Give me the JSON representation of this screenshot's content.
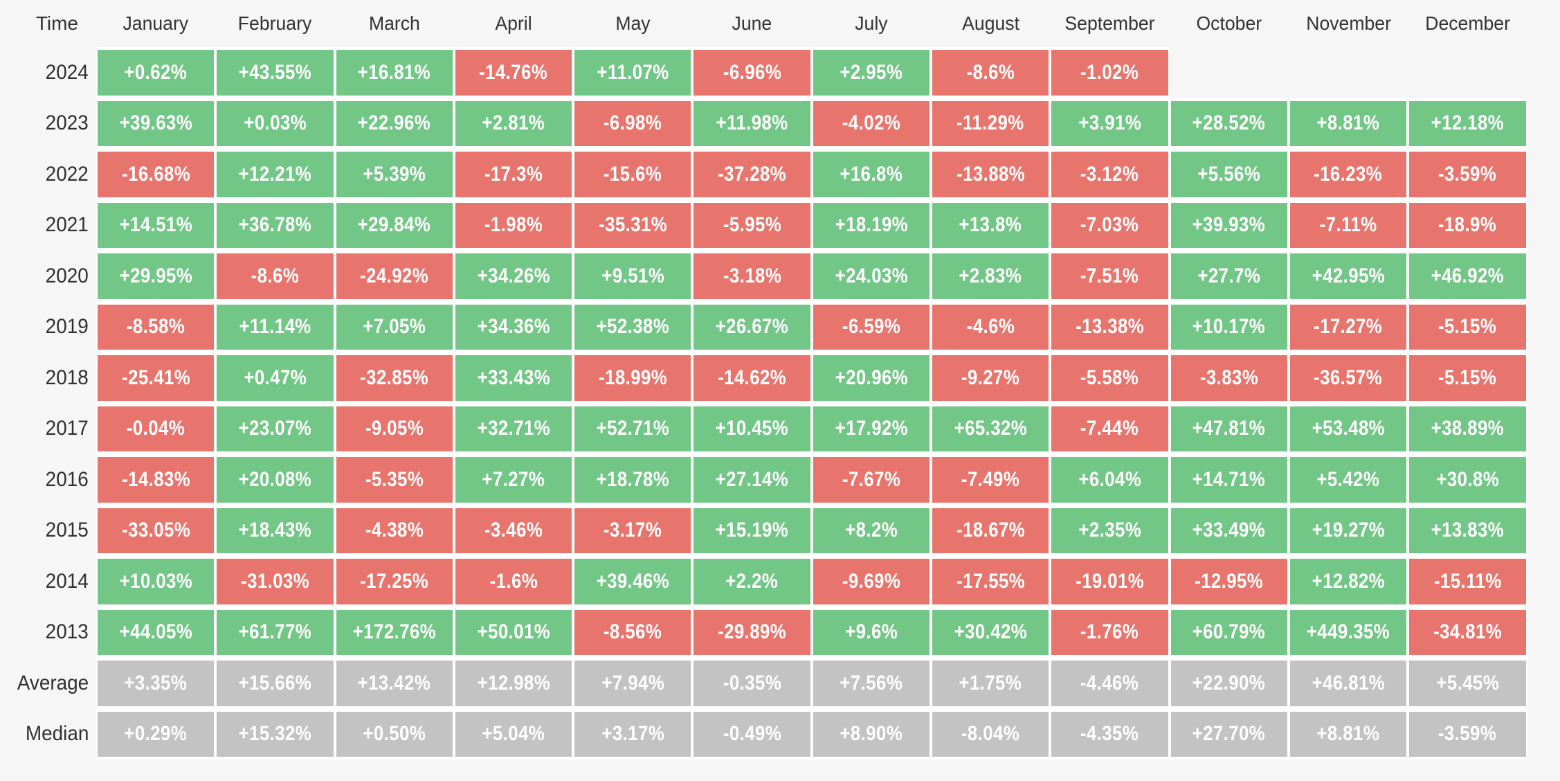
{
  "colors": {
    "positive": "#73c786",
    "negative": "#e8756d",
    "neutral": "#c3c3c3",
    "background": "#f6f6f6",
    "cell_gap": "#ffffff",
    "cell_text": "#ffffff",
    "label_text": "#333333"
  },
  "chart_data": {
    "type": "heatmap",
    "corner_label": "Time",
    "value_format": "percent",
    "color_rule": "green = positive return, red = negative return, gray = summary rows",
    "columns": [
      "January",
      "February",
      "March",
      "April",
      "May",
      "June",
      "July",
      "August",
      "September",
      "October",
      "November",
      "December"
    ],
    "rows": [
      {
        "label": "2024",
        "kind": "year",
        "values": [
          "+0.62%",
          "+43.55%",
          "+16.81%",
          "-14.76%",
          "+11.07%",
          "-6.96%",
          "+2.95%",
          "-8.6%",
          "-1.02%",
          null,
          null,
          null
        ]
      },
      {
        "label": "2023",
        "kind": "year",
        "values": [
          "+39.63%",
          "+0.03%",
          "+22.96%",
          "+2.81%",
          "-6.98%",
          "+11.98%",
          "-4.02%",
          "-11.29%",
          "+3.91%",
          "+28.52%",
          "+8.81%",
          "+12.18%"
        ]
      },
      {
        "label": "2022",
        "kind": "year",
        "values": [
          "-16.68%",
          "+12.21%",
          "+5.39%",
          "-17.3%",
          "-15.6%",
          "-37.28%",
          "+16.8%",
          "-13.88%",
          "-3.12%",
          "+5.56%",
          "-16.23%",
          "-3.59%"
        ]
      },
      {
        "label": "2021",
        "kind": "year",
        "values": [
          "+14.51%",
          "+36.78%",
          "+29.84%",
          "-1.98%",
          "-35.31%",
          "-5.95%",
          "+18.19%",
          "+13.8%",
          "-7.03%",
          "+39.93%",
          "-7.11%",
          "-18.9%"
        ]
      },
      {
        "label": "2020",
        "kind": "year",
        "values": [
          "+29.95%",
          "-8.6%",
          "-24.92%",
          "+34.26%",
          "+9.51%",
          "-3.18%",
          "+24.03%",
          "+2.83%",
          "-7.51%",
          "+27.7%",
          "+42.95%",
          "+46.92%"
        ]
      },
      {
        "label": "2019",
        "kind": "year",
        "values": [
          "-8.58%",
          "+11.14%",
          "+7.05%",
          "+34.36%",
          "+52.38%",
          "+26.67%",
          "-6.59%",
          "-4.6%",
          "-13.38%",
          "+10.17%",
          "-17.27%",
          "-5.15%"
        ]
      },
      {
        "label": "2018",
        "kind": "year",
        "values": [
          "-25.41%",
          "+0.47%",
          "-32.85%",
          "+33.43%",
          "-18.99%",
          "-14.62%",
          "+20.96%",
          "-9.27%",
          "-5.58%",
          "-3.83%",
          "-36.57%",
          "-5.15%"
        ]
      },
      {
        "label": "2017",
        "kind": "year",
        "values": [
          "-0.04%",
          "+23.07%",
          "-9.05%",
          "+32.71%",
          "+52.71%",
          "+10.45%",
          "+17.92%",
          "+65.32%",
          "-7.44%",
          "+47.81%",
          "+53.48%",
          "+38.89%"
        ]
      },
      {
        "label": "2016",
        "kind": "year",
        "values": [
          "-14.83%",
          "+20.08%",
          "-5.35%",
          "+7.27%",
          "+18.78%",
          "+27.14%",
          "-7.67%",
          "-7.49%",
          "+6.04%",
          "+14.71%",
          "+5.42%",
          "+30.8%"
        ]
      },
      {
        "label": "2015",
        "kind": "year",
        "values": [
          "-33.05%",
          "+18.43%",
          "-4.38%",
          "-3.46%",
          "-3.17%",
          "+15.19%",
          "+8.2%",
          "-18.67%",
          "+2.35%",
          "+33.49%",
          "+19.27%",
          "+13.83%"
        ]
      },
      {
        "label": "2014",
        "kind": "year",
        "values": [
          "+10.03%",
          "-31.03%",
          "-17.25%",
          "-1.6%",
          "+39.46%",
          "+2.2%",
          "-9.69%",
          "-17.55%",
          "-19.01%",
          "-12.95%",
          "+12.82%",
          "-15.11%"
        ]
      },
      {
        "label": "2013",
        "kind": "year",
        "values": [
          "+44.05%",
          "+61.77%",
          "+172.76%",
          "+50.01%",
          "-8.56%",
          "-29.89%",
          "+9.6%",
          "+30.42%",
          "-1.76%",
          "+60.79%",
          "+449.35%",
          "-34.81%"
        ]
      },
      {
        "label": "Average",
        "kind": "summary",
        "values": [
          "+3.35%",
          "+15.66%",
          "+13.42%",
          "+12.98%",
          "+7.94%",
          "-0.35%",
          "+7.56%",
          "+1.75%",
          "-4.46%",
          "+22.90%",
          "+46.81%",
          "+5.45%"
        ]
      },
      {
        "label": "Median",
        "kind": "summary",
        "values": [
          "+0.29%",
          "+15.32%",
          "+0.50%",
          "+5.04%",
          "+3.17%",
          "-0.49%",
          "+8.90%",
          "-8.04%",
          "-4.35%",
          "+27.70%",
          "+8.81%",
          "-3.59%"
        ]
      }
    ]
  }
}
